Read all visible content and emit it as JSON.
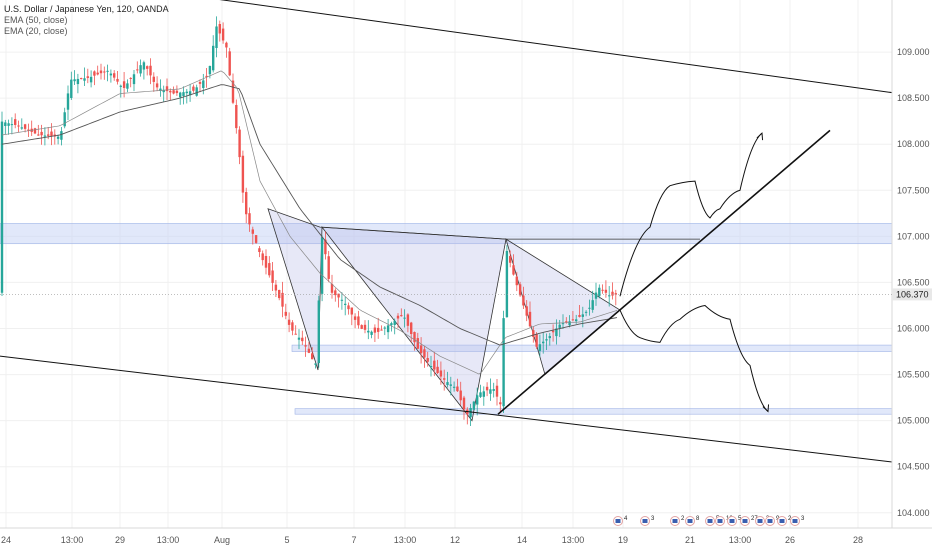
{
  "legend": {
    "title": "U.S. Dollar / Japanese Yen, 120, OANDA",
    "ema50": "EMA (50, close)",
    "ema20": "EMA (20, close)"
  },
  "chart_data": {
    "type": "candlestick",
    "symbol": "U.S. Dollar / Japanese Yen, 120, OANDA",
    "y_ticks": [
      "109.000",
      "108.500",
      "108.000",
      "107.500",
      "107.000",
      "106.500",
      "106.000",
      "105.500",
      "105.000",
      "104.500",
      "104.000"
    ],
    "y_values": [
      109.0,
      108.5,
      108.0,
      107.5,
      107.0,
      106.5,
      106.0,
      105.5,
      105.0,
      104.5,
      104.0
    ],
    "ylim": [
      103.9,
      109.5
    ],
    "x_ticks": [
      "24",
      "13:00",
      "29",
      "13:00",
      "Aug",
      "5",
      "7",
      "13:00",
      "12",
      "14",
      "13:00",
      "19",
      "21",
      "13:00",
      "26",
      "28"
    ],
    "x_tick_index": [
      6,
      72,
      120,
      168,
      222,
      287,
      354,
      405,
      455,
      522,
      573,
      623,
      690,
      740,
      790,
      858
    ],
    "current_price": "106.370",
    "last_price": 106.37,
    "candle_anchors": [
      [
        2,
        108.25
      ],
      [
        20,
        108.2
      ],
      [
        40,
        108.1
      ],
      [
        62,
        108.08
      ],
      [
        72,
        108.7
      ],
      [
        90,
        108.72
      ],
      [
        110,
        108.8
      ],
      [
        125,
        108.6
      ],
      [
        145,
        108.9
      ],
      [
        158,
        108.62
      ],
      [
        175,
        108.55
      ],
      [
        195,
        108.58
      ],
      [
        210,
        108.75
      ],
      [
        218,
        109.28
      ],
      [
        228,
        109.05
      ],
      [
        234,
        108.5
      ],
      [
        240,
        108.0
      ],
      [
        246,
        107.3
      ],
      [
        252,
        107.1
      ],
      [
        262,
        106.8
      ],
      [
        272,
        106.55
      ],
      [
        282,
        106.3
      ],
      [
        292,
        106.0
      ],
      [
        305,
        105.85
      ],
      [
        317,
        105.6
      ],
      [
        324,
        107.05
      ],
      [
        332,
        106.4
      ],
      [
        345,
        106.3
      ],
      [
        362,
        106.0
      ],
      [
        378,
        105.95
      ],
      [
        392,
        106.05
      ],
      [
        405,
        106.15
      ],
      [
        418,
        105.8
      ],
      [
        432,
        105.6
      ],
      [
        445,
        105.45
      ],
      [
        458,
        105.35
      ],
      [
        468,
        105.05
      ],
      [
        480,
        105.3
      ],
      [
        495,
        105.35
      ],
      [
        503,
        105.15
      ],
      [
        507,
        106.9
      ],
      [
        516,
        106.55
      ],
      [
        528,
        106.15
      ],
      [
        538,
        105.8
      ],
      [
        550,
        105.9
      ],
      [
        562,
        106.05
      ],
      [
        578,
        106.1
      ],
      [
        590,
        106.2
      ],
      [
        600,
        106.45
      ],
      [
        612,
        106.35
      ],
      [
        618,
        106.37
      ]
    ],
    "ema50_anchors": [
      [
        2,
        108.0
      ],
      [
        60,
        108.1
      ],
      [
        120,
        108.35
      ],
      [
        180,
        108.5
      ],
      [
        222,
        108.65
      ],
      [
        240,
        108.6
      ],
      [
        260,
        108.0
      ],
      [
        300,
        107.3
      ],
      [
        340,
        106.75
      ],
      [
        380,
        106.45
      ],
      [
        420,
        106.25
      ],
      [
        460,
        106.0
      ],
      [
        500,
        105.82
      ],
      [
        540,
        105.95
      ],
      [
        580,
        106.05
      ],
      [
        618,
        106.12
      ]
    ],
    "ema20_anchors": [
      [
        2,
        108.1
      ],
      [
        60,
        108.2
      ],
      [
        120,
        108.55
      ],
      [
        180,
        108.6
      ],
      [
        222,
        108.8
      ],
      [
        238,
        108.6
      ],
      [
        260,
        107.6
      ],
      [
        290,
        107.0
      ],
      [
        320,
        106.6
      ],
      [
        360,
        106.2
      ],
      [
        400,
        105.98
      ],
      [
        440,
        105.7
      ],
      [
        480,
        105.5
      ],
      [
        505,
        105.9
      ],
      [
        540,
        106.05
      ],
      [
        580,
        106.07
      ],
      [
        618,
        106.2
      ]
    ],
    "resistance_zone": [
      106.92,
      107.14
    ],
    "support_zone_1": [
      105.75,
      105.82
    ],
    "support_zone_2": [
      105.07,
      105.13
    ],
    "channel_upper": [
      [
        100,
        109.75
      ],
      [
        932,
        108.5
      ]
    ],
    "channel_lower": [
      [
        0,
        105.7
      ],
      [
        932,
        104.5
      ]
    ],
    "trendline": [
      [
        498,
        105.07
      ],
      [
        830,
        108.15
      ]
    ],
    "pattern_1": [
      [
        268,
        107.3
      ],
      [
        318,
        105.55
      ],
      [
        322,
        107.1
      ],
      [
        472,
        105.0
      ],
      [
        506,
        106.97
      ],
      [
        320,
        107.1
      ]
    ],
    "pattern_2": [
      [
        506,
        106.97
      ],
      [
        545,
        105.5
      ],
      [
        620,
        106.2
      ]
    ],
    "neckline": [
      [
        322,
        107.1
      ],
      [
        506,
        106.97
      ],
      [
        700,
        106.97
      ]
    ],
    "bull_path": [
      [
        620,
        106.35
      ],
      [
        650,
        107.1
      ],
      [
        670,
        107.55
      ],
      [
        695,
        107.6
      ],
      [
        710,
        107.2
      ],
      [
        720,
        107.3
      ],
      [
        740,
        107.5
      ],
      [
        762,
        108.12
      ]
    ],
    "bear_path": [
      [
        620,
        106.2
      ],
      [
        640,
        105.9
      ],
      [
        660,
        105.85
      ],
      [
        680,
        106.1
      ],
      [
        705,
        106.25
      ],
      [
        730,
        106.1
      ],
      [
        750,
        105.6
      ],
      [
        768,
        105.1
      ]
    ],
    "event_flags": [
      {
        "x": 618,
        "label": "4"
      },
      {
        "x": 645,
        "label": "3"
      },
      {
        "x": 675,
        "label": "2"
      },
      {
        "x": 690,
        "label": "8"
      },
      {
        "x": 710,
        "label": "5"
      },
      {
        "x": 720,
        "label": "12"
      },
      {
        "x": 732,
        "label": "5"
      },
      {
        "x": 745,
        "label": "27"
      },
      {
        "x": 760,
        "label": "3"
      },
      {
        "x": 770,
        "label": "9"
      },
      {
        "x": 782,
        "label": "2"
      },
      {
        "x": 795,
        "label": "3"
      }
    ],
    "colors": {
      "up": "#26a69a",
      "down": "#ef5350",
      "ema": "#555555",
      "zone": "#c8d6f5",
      "pattern": "#b9bde8",
      "line": "#111111",
      "grid": "#f0f0f0"
    }
  }
}
